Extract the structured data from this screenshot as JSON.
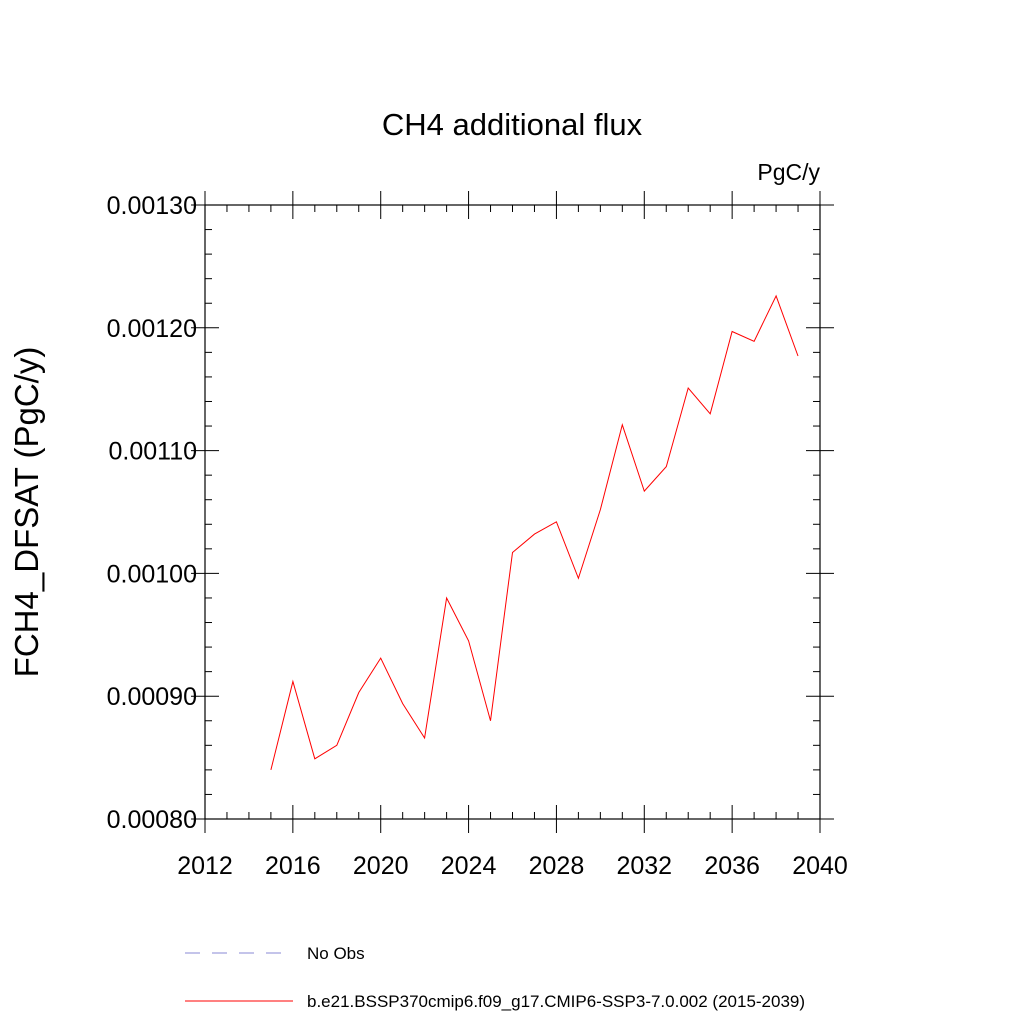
{
  "chart_data": {
    "type": "line",
    "title": "CH4 additional flux",
    "units_label": "PgC/y",
    "xlabel": "",
    "ylabel": "FCH4_DFSAT  (PgC/y)",
    "xlim": [
      2012,
      2040
    ],
    "ylim": [
      0.0008,
      0.0013
    ],
    "x_ticks": [
      2012,
      2016,
      2020,
      2024,
      2028,
      2032,
      2036,
      2040
    ],
    "x_tick_labels": [
      "2012",
      "2016",
      "2020",
      "2024",
      "2028",
      "2032",
      "2036",
      "2040"
    ],
    "y_ticks": [
      0.0008,
      0.0009,
      0.001,
      0.0011,
      0.0012,
      0.0013
    ],
    "y_tick_labels": [
      "0.00080",
      "0.00090",
      "0.00100",
      "0.00110",
      "0.00120",
      "0.00130"
    ],
    "grid": false,
    "legend": {
      "position": "bottom",
      "entries": [
        {
          "label": "No Obs",
          "color": "#8a8ad6",
          "style": "dashed"
        },
        {
          "label": "b.e21.BSSP370cmip6.f09_g17.CMIP6-SSP3-7.0.002 (2015-2039)",
          "color": "#ff0000",
          "style": "solid"
        }
      ]
    },
    "series": [
      {
        "name": "b.e21.BSSP370cmip6.f09_g17.CMIP6-SSP3-7.0.002 (2015-2039)",
        "color": "#ff0000",
        "x": [
          2015,
          2016,
          2017,
          2018,
          2019,
          2020,
          2021,
          2022,
          2023,
          2024,
          2025,
          2026,
          2027,
          2028,
          2029,
          2030,
          2031,
          2032,
          2033,
          2034,
          2035,
          2036,
          2037,
          2038,
          2039
        ],
        "values": [
          0.00084,
          0.000912,
          0.000849,
          0.00086,
          0.000903,
          0.000931,
          0.000894,
          0.000866,
          0.00098,
          0.000945,
          0.00088,
          0.001017,
          0.001032,
          0.001042,
          0.000996,
          0.001052,
          0.001121,
          0.001067,
          0.001087,
          0.001151,
          0.00113,
          0.001197,
          0.001189,
          0.001226,
          0.001177
        ]
      }
    ]
  }
}
